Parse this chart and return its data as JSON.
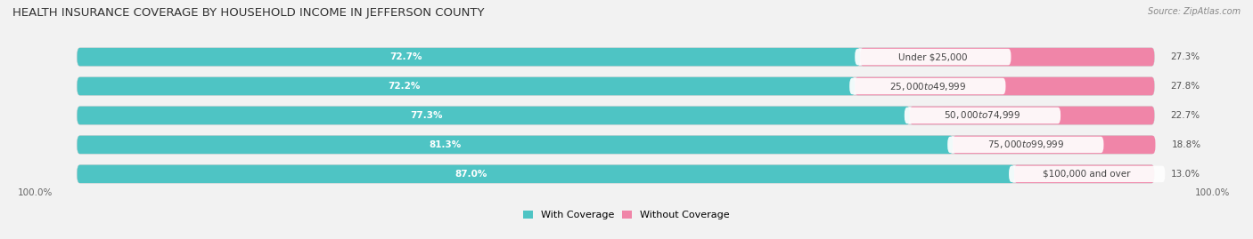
{
  "title": "HEALTH INSURANCE COVERAGE BY HOUSEHOLD INCOME IN JEFFERSON COUNTY",
  "source": "Source: ZipAtlas.com",
  "categories": [
    "Under $25,000",
    "$25,000 to $49,999",
    "$50,000 to $74,999",
    "$75,000 to $99,999",
    "$100,000 and over"
  ],
  "with_coverage": [
    72.7,
    72.2,
    77.3,
    81.3,
    87.0
  ],
  "without_coverage": [
    27.3,
    27.8,
    22.7,
    18.8,
    13.0
  ],
  "color_with": "#4ec4c4",
  "color_without": "#f085a8",
  "bg_color": "#f2f2f2",
  "bar_bg": "#e0e0e8",
  "title_fontsize": 9.5,
  "source_fontsize": 7,
  "label_fontsize": 7.5,
  "cat_fontsize": 7.5,
  "legend_fontsize": 8,
  "axis_label_fontsize": 7.5,
  "bar_height": 0.62,
  "bar_rounding": 0.25
}
